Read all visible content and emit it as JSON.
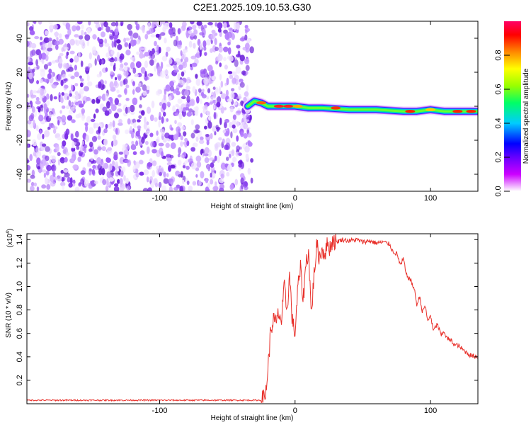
{
  "figure": {
    "title": "C2E1.2025.109.10.53.G30"
  },
  "chart_data": [
    {
      "type": "heatmap",
      "xlabel": "Height of straight line (km)",
      "ylabel": "Frequency (Hz)",
      "xlim": [
        -198,
        135
      ],
      "ylim": [
        -50,
        50
      ],
      "x_ticks": [
        -100,
        0,
        100
      ],
      "y_ticks": [
        -40,
        -20,
        0,
        20,
        40
      ],
      "colorbar": {
        "label": "Normalized spectral amplitude",
        "range": [
          0,
          1
        ],
        "ticks": [
          "0.0",
          "0.2",
          "0.4",
          "0.6",
          "0.8"
        ],
        "colormap": [
          "#ffffff",
          "#cc00ff",
          "#6600ff",
          "#0000ff",
          "#00ccff",
          "#00ff66",
          "#99ff00",
          "#ffff00",
          "#ff8800",
          "#ff0000",
          "#ff0066"
        ]
      },
      "noise_region_x": [
        -198,
        -35
      ],
      "signal_trace": {
        "x": [
          -35,
          -30,
          -25,
          -20,
          -10,
          0,
          10,
          20,
          40,
          60,
          80,
          90,
          100,
          110,
          120,
          135
        ],
        "frequency": [
          0,
          3,
          2,
          0,
          0,
          0,
          -1,
          -1,
          -2,
          -2,
          -3,
          -3,
          -2,
          -3,
          -3,
          -3
        ]
      }
    },
    {
      "type": "line",
      "xlabel": "Height of straight line (km)",
      "ylabel": "SNR (10 * v/v)",
      "y_multiplier": "(x10",
      "y_multiplier_exponent": "4",
      "xlim": [
        -198,
        135
      ],
      "ylim": [
        0,
        1.45
      ],
      "x_ticks": [
        -100,
        0,
        100
      ],
      "y_ticks": [
        "0.2",
        "0.4",
        "0.6",
        "0.8",
        "1.0",
        "1.2",
        "1.4"
      ],
      "color": "#e8302a",
      "series": [
        {
          "x": [
            -198,
            -180,
            -160,
            -140,
            -120,
            -100,
            -80,
            -60,
            -40,
            -25,
            -22,
            -20,
            -18,
            -16,
            -14,
            -12,
            -10,
            -8,
            -6,
            -4,
            -2,
            0,
            2,
            4,
            6,
            8,
            10,
            12,
            14,
            16,
            18,
            20,
            22,
            24,
            26,
            28,
            30,
            35,
            40,
            45,
            50,
            55,
            60,
            65,
            70,
            72,
            75,
            78,
            80,
            82,
            85,
            88,
            90,
            92,
            94,
            96,
            98,
            100,
            102,
            105,
            108,
            110,
            112,
            115,
            118,
            120,
            125,
            130,
            135
          ],
          "y": [
            0.03,
            0.03,
            0.03,
            0.03,
            0.03,
            0.03,
            0.03,
            0.03,
            0.03,
            0.03,
            0.06,
            0.3,
            0.62,
            0.72,
            0.68,
            0.78,
            0.7,
            1.0,
            0.8,
            1.1,
            0.7,
            0.6,
            0.98,
            1.15,
            0.88,
            1.2,
            1.3,
            0.75,
            1.1,
            1.35,
            1.25,
            1.32,
            1.28,
            1.36,
            1.33,
            1.4,
            1.38,
            1.4,
            1.39,
            1.4,
            1.38,
            1.39,
            1.37,
            1.38,
            1.36,
            1.3,
            1.28,
            1.18,
            1.24,
            1.1,
            1.06,
            0.98,
            0.84,
            0.92,
            0.78,
            0.84,
            0.7,
            0.76,
            0.62,
            0.68,
            0.58,
            0.62,
            0.56,
            0.54,
            0.5,
            0.5,
            0.45,
            0.41,
            0.4
          ]
        }
      ]
    }
  ]
}
